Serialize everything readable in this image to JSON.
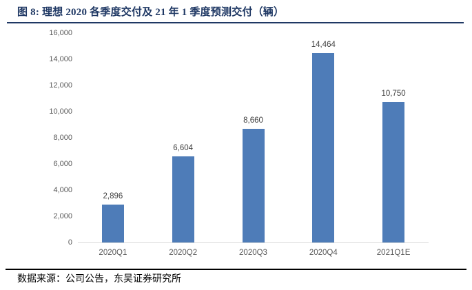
{
  "header": {
    "title": "图 8:  理想 2020 各季度交付及 21 年 1 季度预测交付（辆）"
  },
  "footer": {
    "source": "数据来源：公司公告，东吴证券研究所"
  },
  "colors": {
    "accent_navy": "#1f3864",
    "bar_fill": "#4e7cb8",
    "axis_text": "#595959",
    "data_label_text": "#3f3f3f",
    "baseline": "#d9d9d9",
    "footer_rule": "#000000"
  },
  "chart_data": {
    "type": "bar",
    "title": "图 8: 理想 2020 各季度交付及 21 年 1 季度预测交付（辆）",
    "categories": [
      "2020Q1",
      "2020Q2",
      "2020Q3",
      "2020Q4",
      "2021Q1E"
    ],
    "values": [
      2896,
      6604,
      8660,
      14464,
      10750
    ],
    "value_labels": [
      "2,896",
      "6,604",
      "8,660",
      "14,464",
      "10,750"
    ],
    "xlabel": "",
    "ylabel": "",
    "ylim": [
      0,
      16000
    ],
    "ytick_step": 2000,
    "ytick_labels": [
      "0",
      "2,000",
      "4,000",
      "6,000",
      "8,000",
      "10,000",
      "12,000",
      "14,000",
      "16,000"
    ],
    "grid": false,
    "legend": false,
    "bar_color": "#4e7cb8"
  }
}
